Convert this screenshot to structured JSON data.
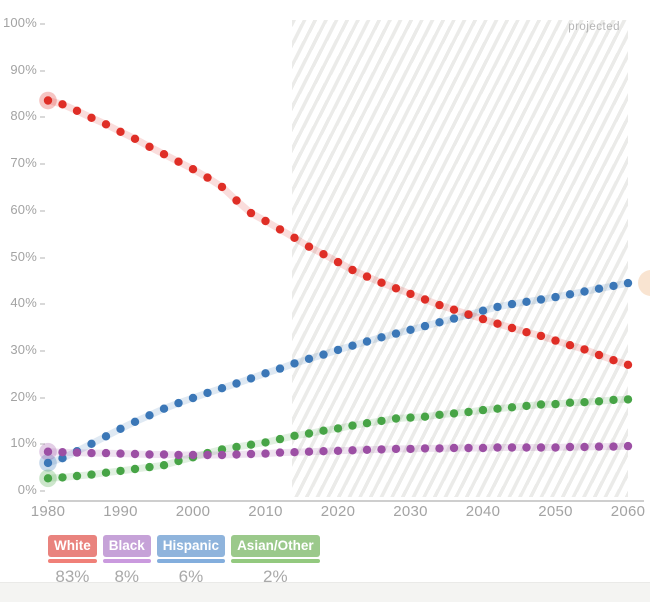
{
  "chart": {
    "projected_label": "projected",
    "y_ticks": [
      {
        "label": "100%",
        "value": 100
      },
      {
        "label": "90%",
        "value": 90
      },
      {
        "label": "80%",
        "value": 80
      },
      {
        "label": "70%",
        "value": 70
      },
      {
        "label": "60%",
        "value": 60
      },
      {
        "label": "50%",
        "value": 50
      },
      {
        "label": "40%",
        "value": 40
      },
      {
        "label": "30%",
        "value": 30
      },
      {
        "label": "20%",
        "value": 20
      },
      {
        "label": "10%",
        "value": 10
      },
      {
        "label": "0%",
        "value": 0
      }
    ],
    "x_ticks": [
      {
        "label": "1980",
        "value": 1980
      },
      {
        "label": "1990",
        "value": 1990
      },
      {
        "label": "2000",
        "value": 2000
      },
      {
        "label": "2010",
        "value": 2010
      },
      {
        "label": "2020",
        "value": 2020
      },
      {
        "label": "2030",
        "value": 2030
      },
      {
        "label": "2040",
        "value": 2040
      },
      {
        "label": "2050",
        "value": 2050
      },
      {
        "label": "2060",
        "value": 2060
      }
    ]
  },
  "chart_data": {
    "type": "scatter",
    "title": "",
    "xlabel": "",
    "ylabel": "",
    "xlim": [
      1980,
      2060
    ],
    "ylim": [
      0,
      100
    ],
    "grid": false,
    "projection_start": 2014,
    "highlight_year": 1980,
    "x": [
      1980,
      1982,
      1984,
      1986,
      1988,
      1990,
      1992,
      1994,
      1996,
      1998,
      2000,
      2002,
      2004,
      2006,
      2008,
      2010,
      2012,
      2014,
      2016,
      2018,
      2020,
      2022,
      2024,
      2026,
      2028,
      2030,
      2032,
      2034,
      2036,
      2038,
      2040,
      2042,
      2044,
      2046,
      2048,
      2050,
      2052,
      2054,
      2056,
      2058,
      2060
    ],
    "series": [
      {
        "name": "Hispanic",
        "color": "#3b77b7",
        "values": [
          5.8,
          6.8,
          8.3,
          9.9,
          11.5,
          13.1,
          14.6,
          16.0,
          17.4,
          18.6,
          19.7,
          20.8,
          21.8,
          22.8,
          23.9,
          25.0,
          26.0,
          27.1,
          28.1,
          29.0,
          30.0,
          30.9,
          31.8,
          32.7,
          33.5,
          34.3,
          35.1,
          35.9,
          36.7,
          37.5,
          38.4,
          39.2,
          39.8,
          40.3,
          40.8,
          41.3,
          41.9,
          42.5,
          43.1,
          43.7,
          44.3
        ]
      },
      {
        "name": "Asian/Other",
        "color": "#47a446",
        "values": [
          2.5,
          2.7,
          3.0,
          3.3,
          3.7,
          4.1,
          4.5,
          4.9,
          5.3,
          6.2,
          7.0,
          7.9,
          8.7,
          9.2,
          9.7,
          10.2,
          10.9,
          11.6,
          12.1,
          12.7,
          13.2,
          13.8,
          14.3,
          14.8,
          15.3,
          15.5,
          15.7,
          16.1,
          16.4,
          16.7,
          17.1,
          17.4,
          17.7,
          18.0,
          18.3,
          18.4,
          18.7,
          18.8,
          19.0,
          19.3,
          19.4
        ]
      },
      {
        "name": "Black",
        "color": "#9c4fa4",
        "values": [
          8.2,
          8.1,
          8.0,
          7.9,
          7.9,
          7.8,
          7.7,
          7.6,
          7.6,
          7.5,
          7.5,
          7.5,
          7.5,
          7.6,
          7.7,
          7.8,
          8.0,
          8.1,
          8.2,
          8.3,
          8.4,
          8.5,
          8.6,
          8.7,
          8.8,
          8.8,
          8.9,
          8.9,
          9.0,
          9.0,
          9.0,
          9.1,
          9.1,
          9.1,
          9.1,
          9.1,
          9.2,
          9.2,
          9.3,
          9.3,
          9.4
        ]
      },
      {
        "name": "White",
        "color": "#df2e26",
        "values": [
          83.4,
          82.6,
          81.2,
          79.7,
          78.3,
          76.7,
          75.2,
          73.5,
          71.9,
          70.3,
          68.7,
          66.9,
          64.9,
          62.0,
          59.3,
          57.6,
          55.8,
          54.0,
          52.1,
          50.5,
          48.8,
          47.1,
          45.7,
          44.4,
          43.2,
          42.0,
          40.8,
          39.6,
          38.6,
          37.6,
          36.6,
          35.6,
          34.7,
          33.8,
          33.0,
          32.0,
          31.0,
          30.1,
          28.9,
          27.8,
          26.8
        ]
      }
    ]
  },
  "legend": {
    "items": [
      {
        "label": "White",
        "value": "83%",
        "bg": "#e9837e",
        "bar": "#f08078"
      },
      {
        "label": "Black",
        "value": "8%",
        "bg": "#c6a2d8",
        "bar": "#ca9ade"
      },
      {
        "label": "Hispanic",
        "value": "6%",
        "bg": "#8fb4dc",
        "bar": "#83aedd"
      },
      {
        "label": "Asian/Other",
        "value": "2%",
        "bg": "#9bc98b",
        "bar": "#93c97f"
      }
    ]
  }
}
